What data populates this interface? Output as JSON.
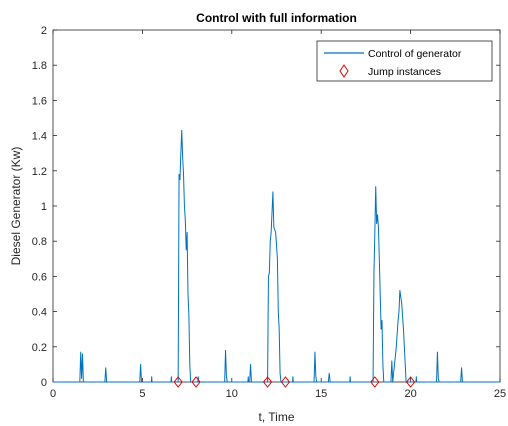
{
  "chart_data": {
    "type": "line",
    "title": "Control with full information",
    "xlabel": "t, Time",
    "ylabel": "Diesel Generator (Kw)",
    "xlim": [
      0,
      25
    ],
    "ylim": [
      0,
      2
    ],
    "x_ticks": [
      "0",
      "5",
      "10",
      "15",
      "20",
      "25"
    ],
    "y_ticks": [
      "0",
      "0.2",
      "0.4",
      "0.6",
      "0.8",
      "1",
      "1.2",
      "1.4",
      "1.6",
      "1.8",
      "2"
    ],
    "grid": false,
    "legend_position": "top-right",
    "series": [
      {
        "name": "Control of generator",
        "style": "line",
        "color": "#0072bd",
        "points": [
          [
            0,
            0
          ],
          [
            1.5,
            0
          ],
          [
            1.55,
            0.17
          ],
          [
            1.6,
            0.02
          ],
          [
            1.65,
            0.16
          ],
          [
            1.7,
            0
          ],
          [
            2.9,
            0
          ],
          [
            2.95,
            0.08
          ],
          [
            3.0,
            0
          ],
          [
            4.85,
            0
          ],
          [
            4.9,
            0.1
          ],
          [
            4.95,
            0
          ],
          [
            5.5,
            0
          ],
          [
            5.52,
            0.03
          ],
          [
            5.54,
            0
          ],
          [
            6.6,
            0
          ],
          [
            6.62,
            0.03
          ],
          [
            6.64,
            0
          ],
          [
            7.0,
            0
          ],
          [
            7.05,
            1.18
          ],
          [
            7.1,
            1.15
          ],
          [
            7.15,
            1.3
          ],
          [
            7.2,
            1.43
          ],
          [
            7.25,
            1.28
          ],
          [
            7.3,
            1.18
          ],
          [
            7.35,
            1.0
          ],
          [
            7.4,
            0.92
          ],
          [
            7.45,
            0.75
          ],
          [
            7.5,
            0.85
          ],
          [
            7.55,
            0.5
          ],
          [
            7.6,
            0.38
          ],
          [
            7.65,
            0.1
          ],
          [
            7.7,
            0
          ],
          [
            8.1,
            0
          ],
          [
            8.12,
            0.03
          ],
          [
            8.14,
            0
          ],
          [
            9.6,
            0
          ],
          [
            9.65,
            0.18
          ],
          [
            9.7,
            0.03
          ],
          [
            9.75,
            0
          ],
          [
            10.9,
            0
          ],
          [
            10.92,
            0.03
          ],
          [
            10.94,
            0
          ],
          [
            11.0,
            0
          ],
          [
            11.05,
            0.1
          ],
          [
            11.1,
            0
          ],
          [
            12.0,
            0
          ],
          [
            12.05,
            0.6
          ],
          [
            12.1,
            0.62
          ],
          [
            12.15,
            0.8
          ],
          [
            12.2,
            0.85
          ],
          [
            12.3,
            1.08
          ],
          [
            12.35,
            0.88
          ],
          [
            12.45,
            0.85
          ],
          [
            12.5,
            0.78
          ],
          [
            12.55,
            0.7
          ],
          [
            12.6,
            0.4
          ],
          [
            12.65,
            0.3
          ],
          [
            12.7,
            0.05
          ],
          [
            12.75,
            0
          ],
          [
            13.4,
            0
          ],
          [
            13.42,
            0.03
          ],
          [
            13.44,
            0
          ],
          [
            14.6,
            0
          ],
          [
            14.65,
            0.17
          ],
          [
            14.7,
            0.03
          ],
          [
            14.75,
            0
          ],
          [
            15.4,
            0
          ],
          [
            15.45,
            0.05
          ],
          [
            15.5,
            0
          ],
          [
            16.6,
            0
          ],
          [
            16.62,
            0.03
          ],
          [
            16.64,
            0
          ],
          [
            17.9,
            0
          ],
          [
            17.95,
            0.62
          ],
          [
            18.0,
            0.85
          ],
          [
            18.05,
            1.11
          ],
          [
            18.1,
            0.9
          ],
          [
            18.15,
            0.95
          ],
          [
            18.2,
            0.88
          ],
          [
            18.25,
            0.7
          ],
          [
            18.3,
            0.5
          ],
          [
            18.35,
            0.3
          ],
          [
            18.4,
            0.35
          ],
          [
            18.45,
            0.1
          ],
          [
            18.5,
            0
          ],
          [
            18.9,
            0
          ],
          [
            18.95,
            0.12
          ],
          [
            19.0,
            0
          ],
          [
            19.2,
            0.2
          ],
          [
            19.3,
            0.35
          ],
          [
            19.35,
            0.4
          ],
          [
            19.4,
            0.52
          ],
          [
            19.5,
            0.45
          ],
          [
            19.6,
            0.3
          ],
          [
            19.7,
            0.1
          ],
          [
            19.75,
            0
          ],
          [
            20.3,
            0
          ],
          [
            20.32,
            0.03
          ],
          [
            20.34,
            0
          ],
          [
            21.45,
            0
          ],
          [
            21.5,
            0.17
          ],
          [
            21.55,
            0.02
          ],
          [
            21.6,
            0
          ],
          [
            22.8,
            0
          ],
          [
            22.85,
            0.08
          ],
          [
            22.9,
            0
          ],
          [
            25,
            0
          ]
        ]
      },
      {
        "name": "Jump instances",
        "style": "marker",
        "marker": "diamond",
        "color": "#e00000",
        "points": [
          [
            7,
            0
          ],
          [
            8,
            0
          ],
          [
            12,
            0
          ],
          [
            13,
            0
          ],
          [
            18,
            0
          ],
          [
            20,
            0
          ]
        ]
      }
    ]
  }
}
